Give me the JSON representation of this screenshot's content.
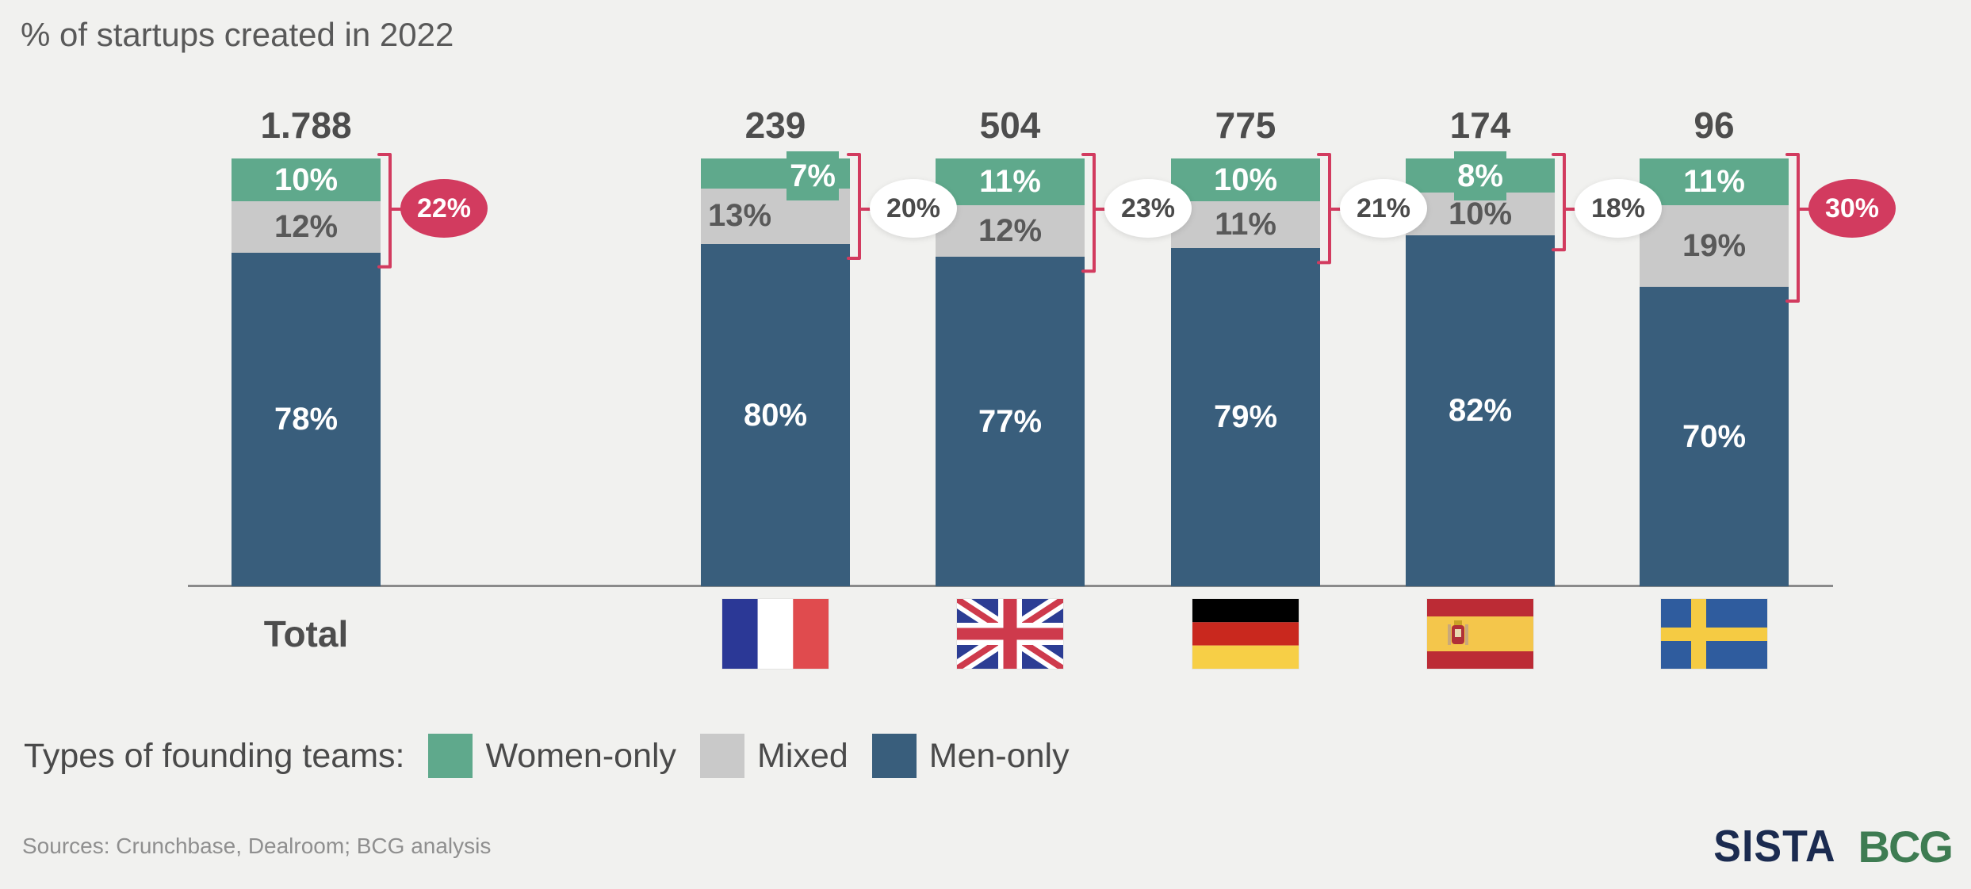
{
  "title": "% of startups created in 2022",
  "colors": {
    "background": "#F1F1EF",
    "women_only": "#5FA98C",
    "mixed": "#C9C9C9",
    "men_only": "#395E7C",
    "accent_red": "#D23B5F",
    "axis": "#8A8A8A",
    "text_dark": "#4D4D4D",
    "text_gray": "#595959"
  },
  "chart_data": {
    "type": "bar",
    "stacked": true,
    "title": "% of startups created in 2022",
    "categories": [
      "Total",
      "France",
      "United Kingdom",
      "Germany",
      "Spain",
      "Sweden"
    ],
    "totals": [
      "1.788",
      "239",
      "504",
      "775",
      "174",
      "96"
    ],
    "series": [
      {
        "name": "Women-only",
        "color": "#5FA98C",
        "values": [
          10,
          7,
          11,
          10,
          8,
          11
        ]
      },
      {
        "name": "Mixed",
        "color": "#C9C9C9",
        "values": [
          12,
          13,
          12,
          11,
          10,
          19
        ]
      },
      {
        "name": "Men-only",
        "color": "#395E7C",
        "values": [
          78,
          80,
          77,
          79,
          82,
          70
        ]
      }
    ],
    "combined_badges": {
      "description": "Women-only + Mixed share, shown in ellipse next to each bar",
      "values": [
        22,
        20,
        23,
        21,
        18,
        30
      ],
      "highlighted": [
        true,
        false,
        false,
        false,
        false,
        true
      ]
    },
    "ylim": [
      0,
      100
    ],
    "legend_position": "bottom",
    "grid": false
  },
  "x_axis": {
    "total_label": "Total",
    "flags": [
      "france",
      "united-kingdom",
      "germany",
      "spain",
      "sweden"
    ]
  },
  "legend": {
    "prefix": "Types of founding teams:",
    "items": [
      {
        "label": "Women-only"
      },
      {
        "label": "Mixed"
      },
      {
        "label": "Men-only"
      }
    ]
  },
  "footer": {
    "sources": "Sources: Crunchbase, Dealroom; BCG analysis",
    "logos": [
      {
        "name": "SISTA",
        "color": "#1B2B50"
      },
      {
        "name": "BCG",
        "color": "#3E7C52"
      }
    ]
  }
}
